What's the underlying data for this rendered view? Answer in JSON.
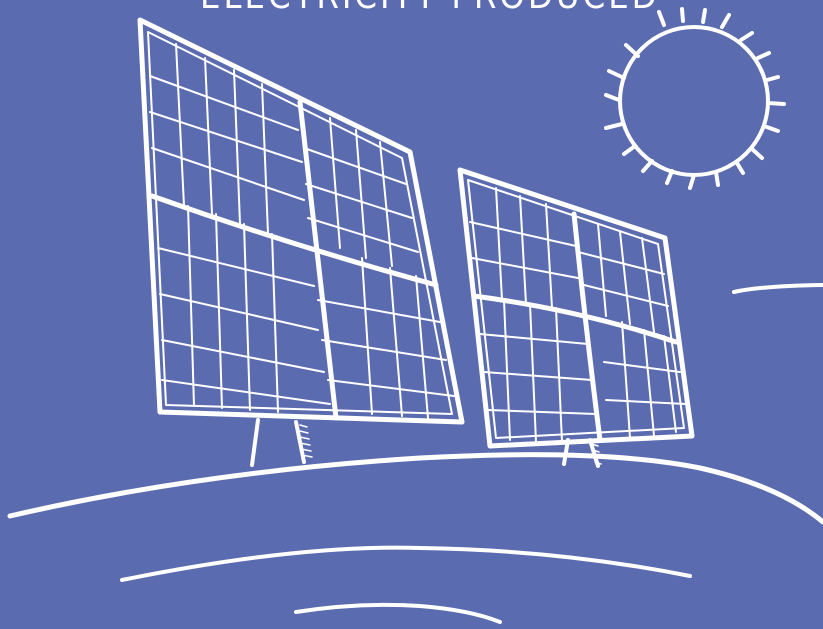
{
  "caption": "ELECTRICITY PRODUCED",
  "colors": {
    "background": "#5b6bb0",
    "ink": "#ffffff"
  },
  "icons": [
    "sun-icon",
    "solar-panel-icon",
    "hill-icon"
  ]
}
